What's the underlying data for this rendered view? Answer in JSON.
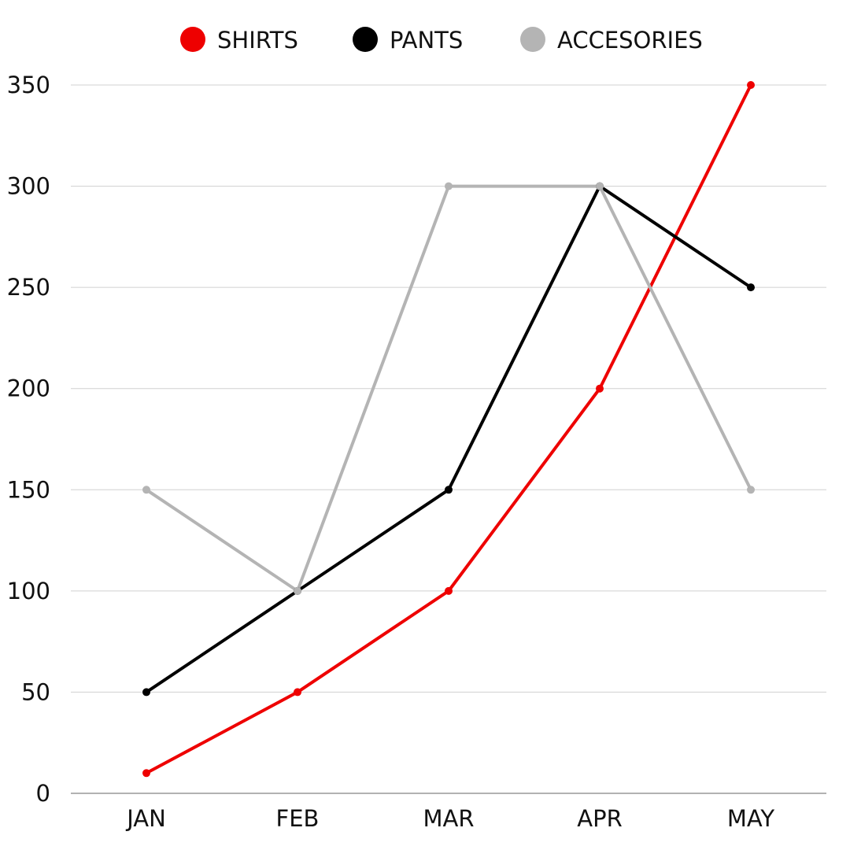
{
  "chart_data": {
    "type": "line",
    "categories": [
      "JAN",
      "FEB",
      "MAR",
      "APR",
      "MAY"
    ],
    "series": [
      {
        "name": "SHIRTS",
        "color": "#ee0000",
        "values": [
          10,
          50,
          100,
          200,
          350
        ]
      },
      {
        "name": "PANTS",
        "color": "#000000",
        "values": [
          50,
          100,
          150,
          300,
          250
        ]
      },
      {
        "name": "ACCESORIES",
        "color": "#b4b4b4",
        "values": [
          150,
          100,
          300,
          300,
          150
        ]
      }
    ],
    "ylim": [
      0,
      350
    ],
    "yticks": [
      0,
      50,
      100,
      150,
      200,
      250,
      300,
      350
    ],
    "grid": true,
    "legend": "top-center"
  }
}
